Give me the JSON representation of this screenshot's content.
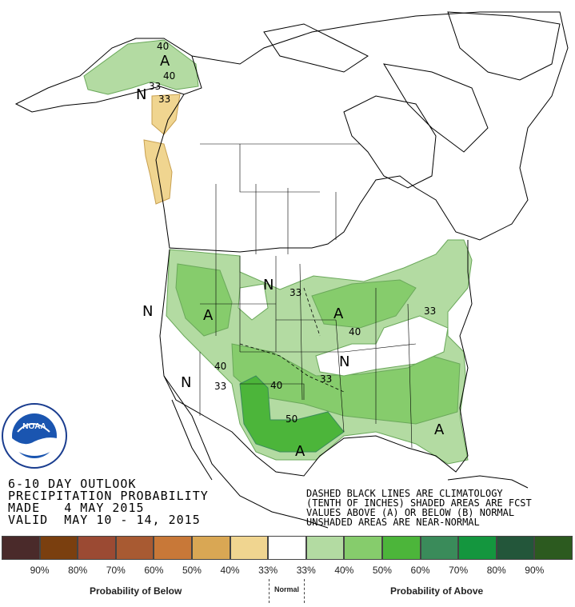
{
  "map": {
    "category_labels": [
      "A",
      "N",
      "A",
      "N",
      "A",
      "N",
      "A",
      "A",
      "N",
      "N"
    ],
    "contour_labels": [
      "40",
      "40",
      "33",
      "33",
      "33",
      "40",
      "33",
      "40",
      "40",
      "33",
      "50",
      "33"
    ]
  },
  "title": {
    "line1": "6-10 DAY OUTLOOK",
    "line2": "PRECIPITATION PROBABILITY",
    "line3": "MADE   4 MAY 2015",
    "line4": "VALID  MAY 10 - 14, 2015"
  },
  "note": {
    "line1": "DASHED BLACK LINES ARE CLIMATOLOGY",
    "line2": "(TENTH OF INCHES) SHADED AREAS ARE FCST",
    "line3": "VALUES ABOVE (A) OR BELOW (B) NORMAL",
    "line4": "UNSHADED AREAS ARE NEAR-NORMAL"
  },
  "legend": {
    "colors": [
      "#4a2a2a",
      "#7a3f0f",
      "#9b4a33",
      "#a85a32",
      "#c87838",
      "#d9a754",
      "#f0d590",
      "#ffffff",
      "#b3dba2",
      "#86cc6c",
      "#4cb53a",
      "#3a8b5a",
      "#14963e",
      "#23563a",
      "#2c5a1f"
    ],
    "ticks": [
      "90%",
      "80%",
      "70%",
      "60%",
      "50%",
      "40%",
      "33%",
      "33%",
      "40%",
      "50%",
      "60%",
      "70%",
      "80%",
      "90%"
    ],
    "below_label": "Probability of Below",
    "normal_label": "Normal",
    "above_label": "Probability of Above"
  }
}
